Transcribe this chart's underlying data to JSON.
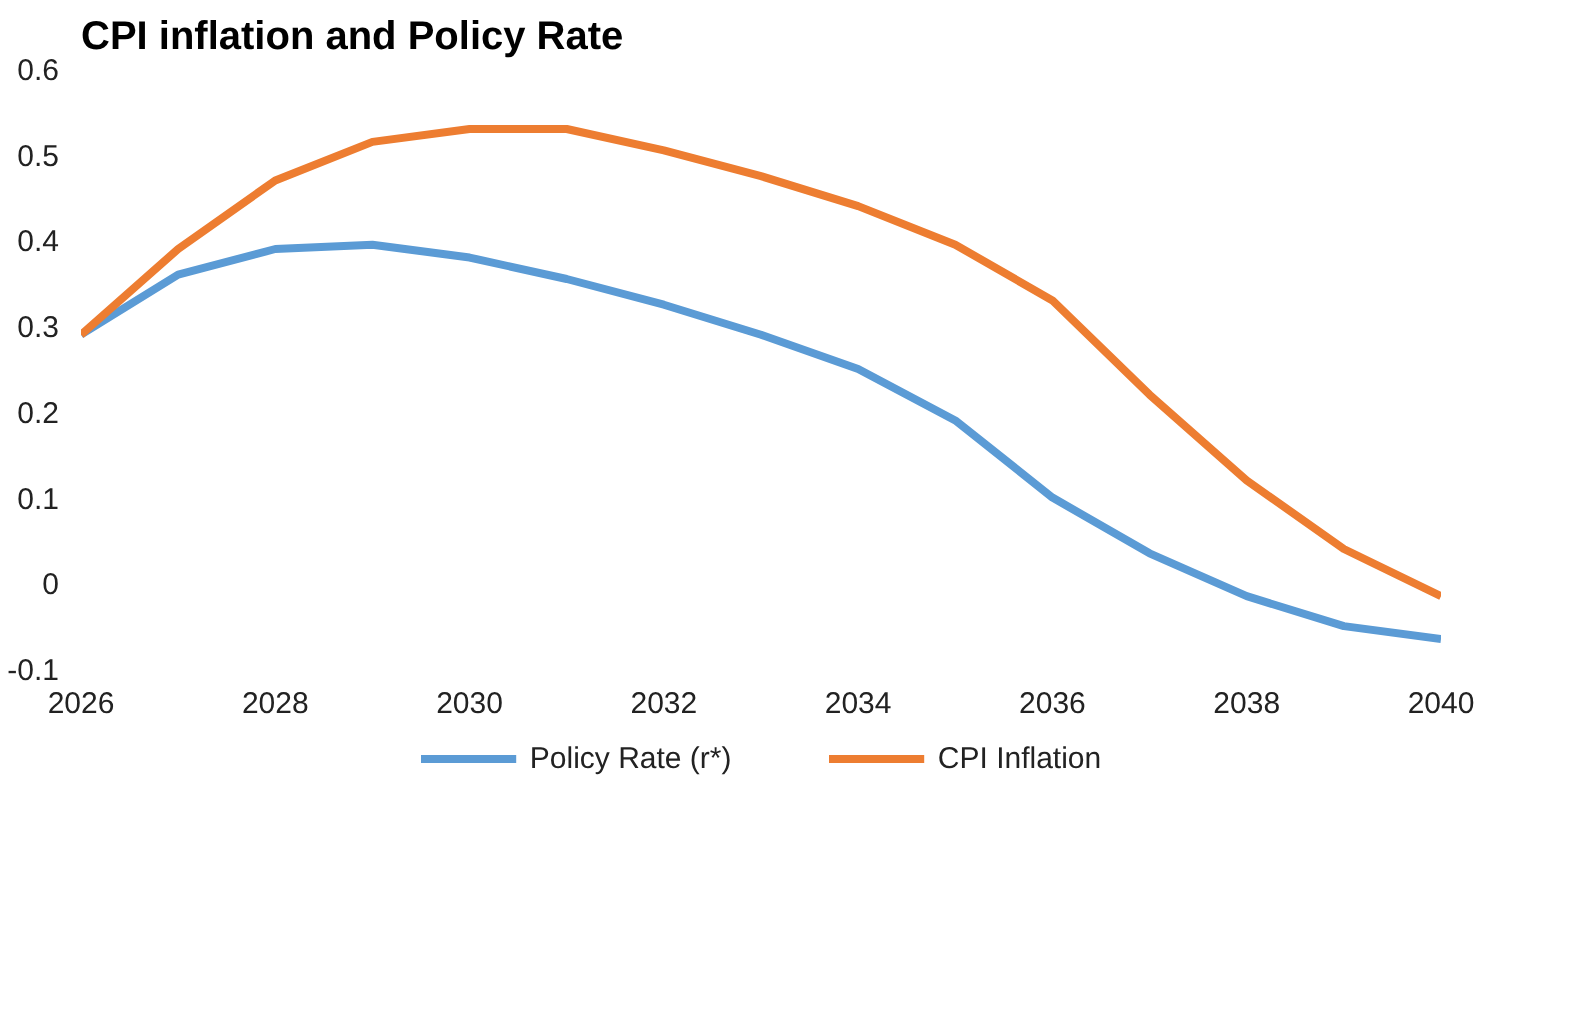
{
  "chart_data": {
    "type": "line",
    "title": "CPI inflation and Policy Rate",
    "x": [
      2026,
      2027,
      2028,
      2029,
      2030,
      2031,
      2032,
      2033,
      2034,
      2035,
      2036,
      2037,
      2038,
      2039,
      2040
    ],
    "series": [
      {
        "name": "Policy Rate (r*)",
        "color": "#5b9bd5",
        "values": [
          0.29,
          0.36,
          0.39,
          0.395,
          0.38,
          0.355,
          0.325,
          0.29,
          0.25,
          0.19,
          0.1,
          0.035,
          -0.015,
          -0.05,
          -0.065
        ]
      },
      {
        "name": "CPI Inflation",
        "color": "#ed7d31",
        "values": [
          0.29,
          0.39,
          0.47,
          0.515,
          0.53,
          0.53,
          0.505,
          0.475,
          0.44,
          0.395,
          0.33,
          0.22,
          0.12,
          0.04,
          -0.015
        ]
      }
    ],
    "xlim": [
      2026,
      2040
    ],
    "ylim": [
      -0.1,
      0.6
    ],
    "xticks": [
      2026,
      2028,
      2030,
      2032,
      2034,
      2036,
      2038,
      2040
    ],
    "yticks": [
      {
        "value": -0.1,
        "label": "-0.1"
      },
      0,
      0.1,
      0.2,
      0.3,
      0.4,
      0.5,
      0.6
    ],
    "grid": false,
    "legend": "bottom",
    "line_style": "solid",
    "marker": "none"
  }
}
